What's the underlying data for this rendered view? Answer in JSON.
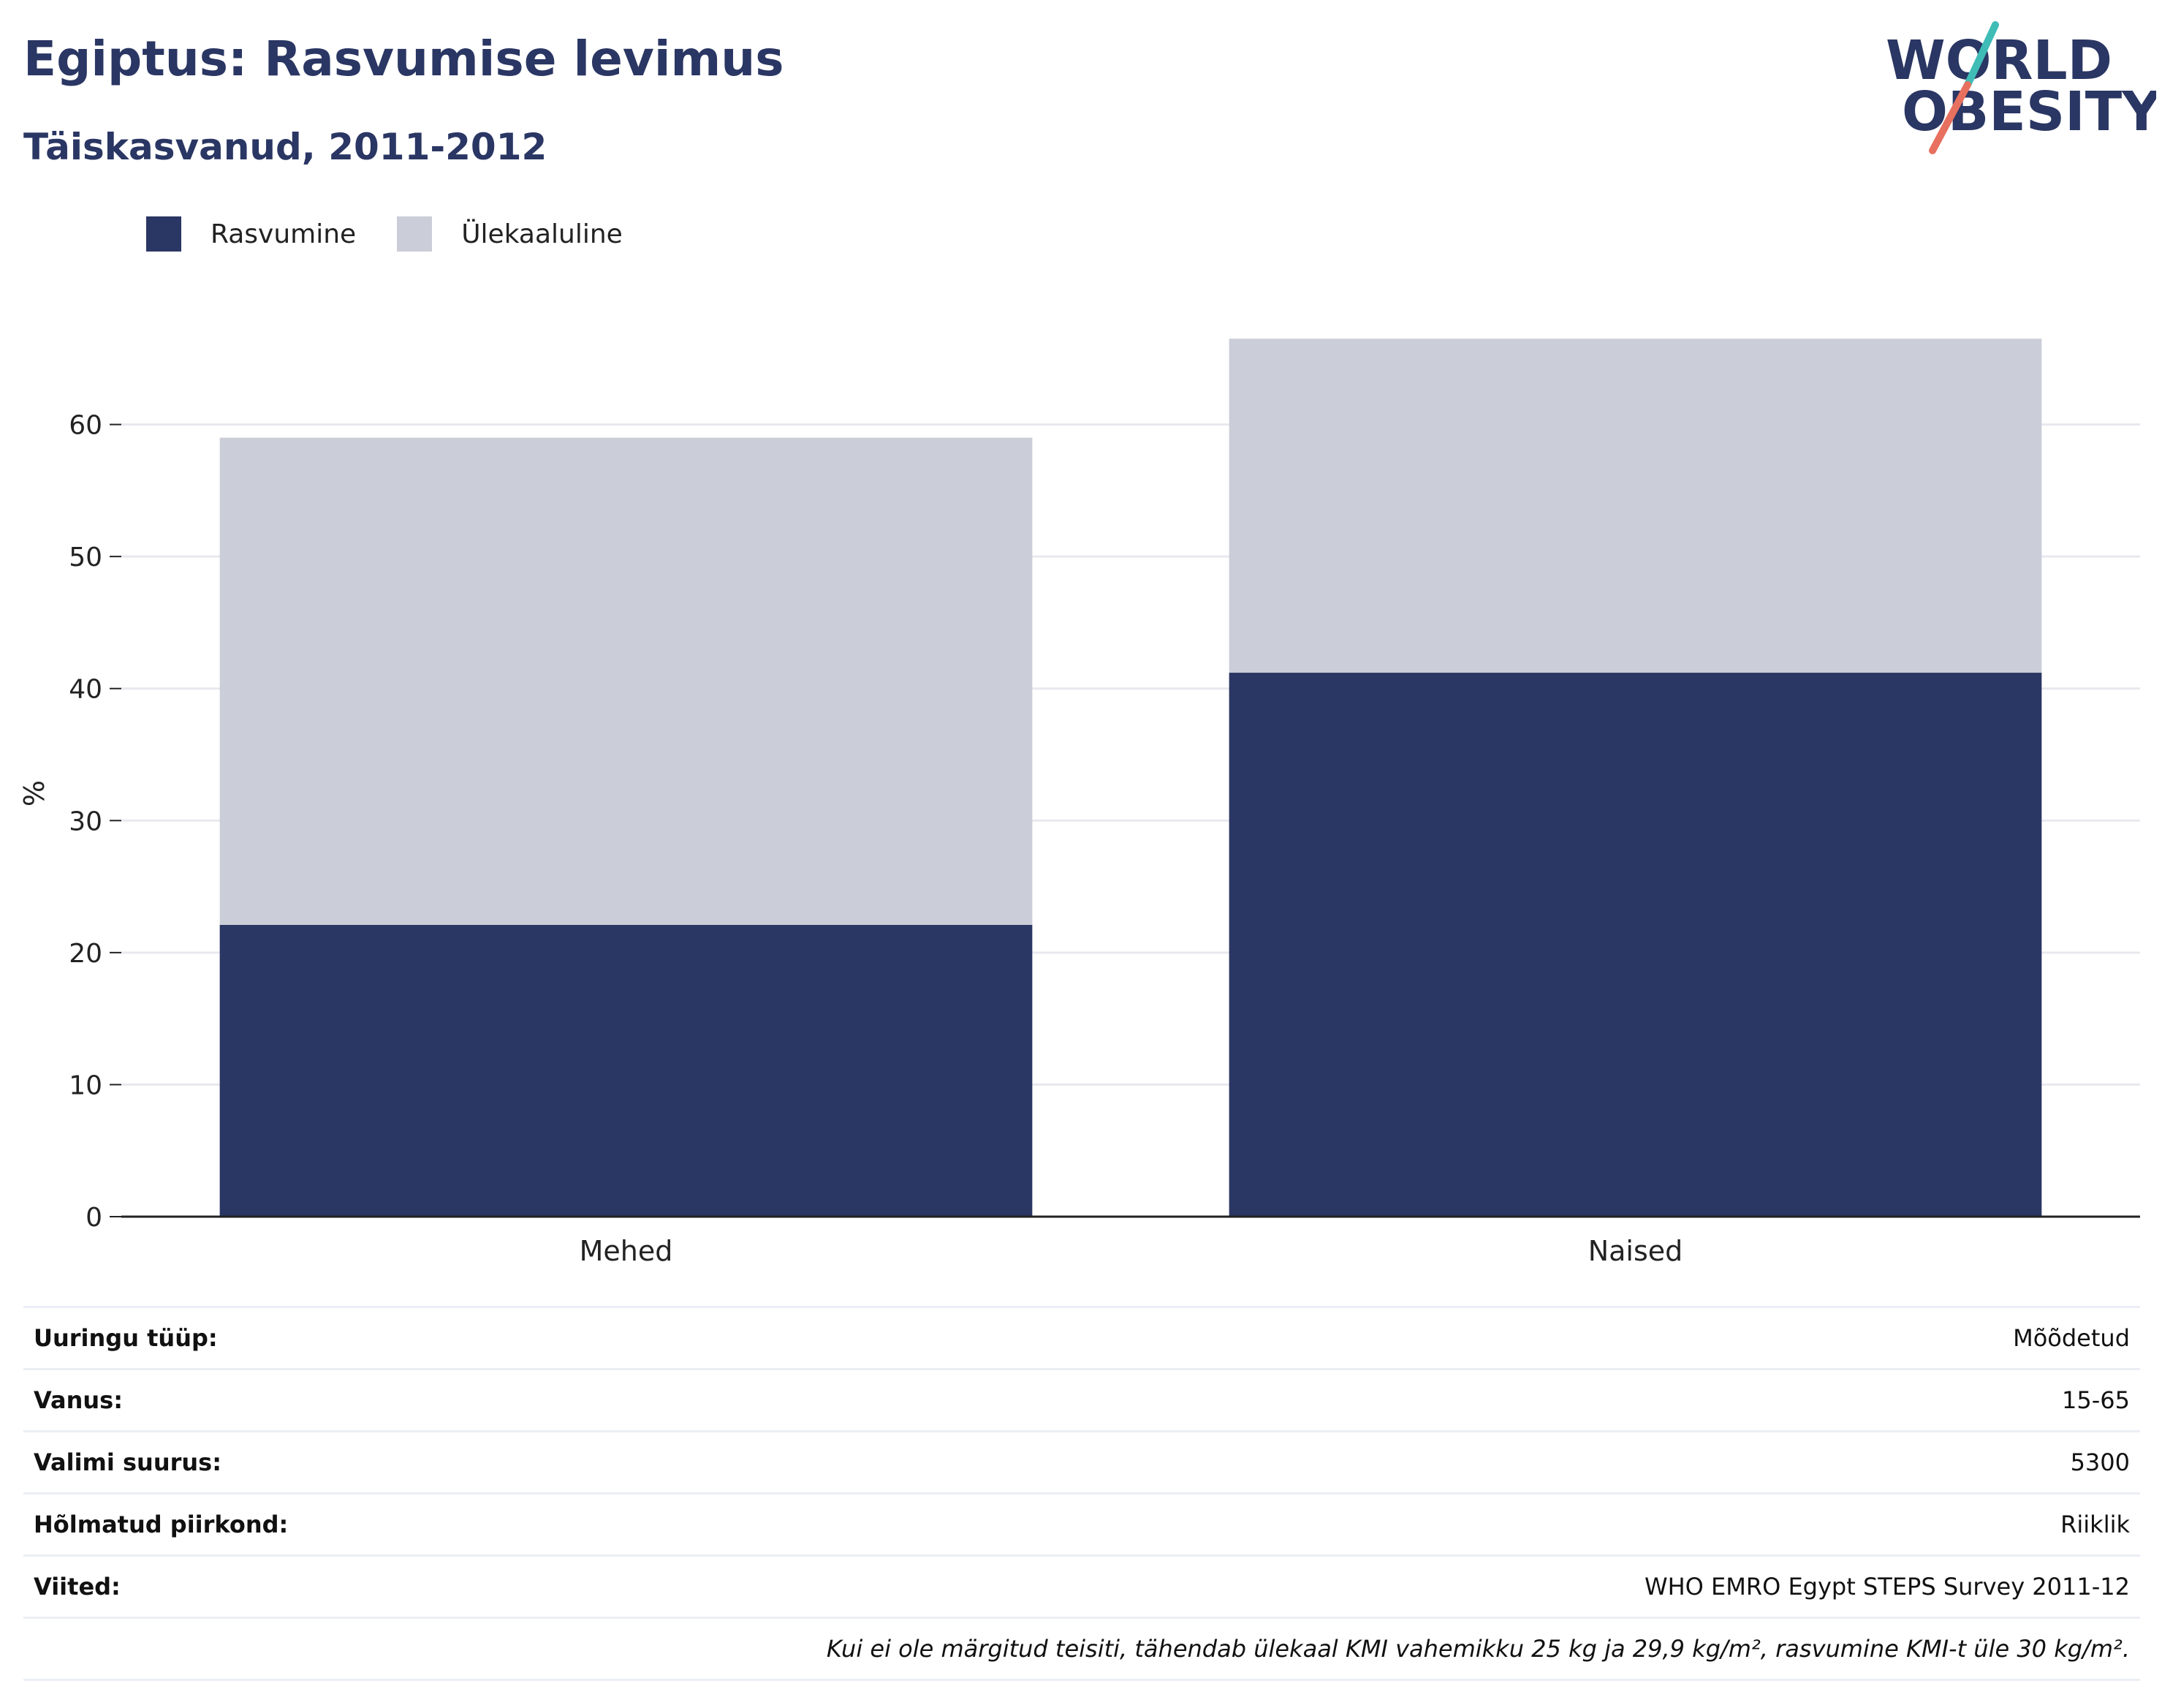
{
  "header": {
    "title": "Egiptus: Rasvumise levimus",
    "subtitle": "Täiskasvanud, 2011-2012"
  },
  "logo": {
    "line1": "WORLD",
    "line2": "OBESITY",
    "colors": {
      "text": "#2a3663",
      "slash_top": "#3fbcb6",
      "slash_bottom": "#e8705f"
    }
  },
  "legend": [
    {
      "label": "Rasvumine",
      "color": "#2a3663"
    },
    {
      "label": "Ülekaaluline",
      "color": "#cbcdd8"
    }
  ],
  "chart_data": {
    "type": "bar",
    "stacked": true,
    "categories": [
      "Mehed",
      "Naised"
    ],
    "series": [
      {
        "name": "Rasvumine",
        "color": "#2a3663",
        "values": [
          22.1,
          41.2
        ]
      },
      {
        "name": "Ülekaaluline",
        "color": "#cbcdd8",
        "values": [
          36.9,
          25.3
        ]
      }
    ],
    "ylabel": "%",
    "xlabel": "",
    "yticks": [
      0,
      10,
      20,
      30,
      40,
      50,
      60
    ],
    "ylim": [
      0,
      70
    ],
    "grid": true,
    "legend_position": "top-left"
  },
  "info": {
    "rows": [
      {
        "label": "Uuringu tüüp:",
        "value": "Mõõdetud"
      },
      {
        "label": "Vanus:",
        "value": "15-65"
      },
      {
        "label": "Valimi suurus:",
        "value": "5300"
      },
      {
        "label": "Hõlmatud piirkond:",
        "value": "Riiklik"
      },
      {
        "label": "Viited:",
        "value": "WHO EMRO Egypt STEPS Survey 2011-12"
      }
    ],
    "note": "Kui ei ole märgitud teisiti, tähendab ülekaal KMI vahemikku 25 kg ja 29,9 kg/m², rasvumine KMI-t üle 30 kg/m²."
  }
}
